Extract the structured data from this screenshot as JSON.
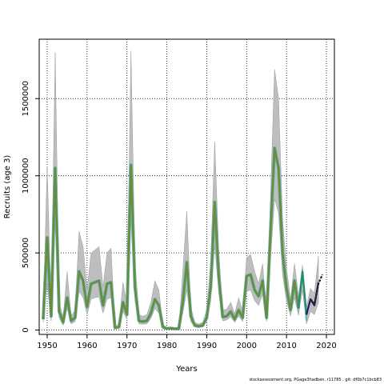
{
  "chart_data": {
    "type": "line",
    "title": "",
    "xlabel": "Years",
    "ylabel": "Recruits (age 3)",
    "xlim": [
      1948,
      2022
    ],
    "ylim": [
      -28000,
      1885000
    ],
    "x_ticks": [
      1950,
      1960,
      1970,
      1980,
      1990,
      2000,
      2010,
      2020
    ],
    "y_ticks": [
      0,
      500000,
      1000000,
      1500000
    ],
    "grid": true,
    "grid_style": "dotted",
    "colors": {
      "band": "#bebebe",
      "band_edge": "#9a9a9a",
      "line_main": "#6e8b3d",
      "line_cyan": "#5fb8b8",
      "line_teal": "#1f8f6a",
      "line_navy": "#1f1f6e",
      "line_dark": "#222222"
    },
    "main_series": {
      "x": [
        1949,
        1950,
        1951,
        1952,
        1953,
        1954,
        1955,
        1956,
        1957,
        1958,
        1959,
        1960,
        1961,
        1962,
        1963,
        1964,
        1965,
        1966,
        1967,
        1968,
        1969,
        1970,
        1971,
        1972,
        1973,
        1974,
        1975,
        1976,
        1977,
        1978,
        1979,
        1980,
        1981,
        1982,
        1983,
        1984,
        1985,
        1986,
        1987,
        1988,
        1989,
        1990,
        1991,
        1992,
        1993,
        1994,
        1995,
        1996,
        1997,
        1998,
        1999,
        2000,
        2001,
        2002,
        2003,
        2004,
        2005,
        2006,
        2007,
        2008,
        2009,
        2010,
        2011,
        2012,
        2013
      ],
      "y": [
        70000,
        600000,
        90000,
        1050000,
        120000,
        50000,
        210000,
        60000,
        80000,
        380000,
        320000,
        150000,
        300000,
        310000,
        320000,
        160000,
        300000,
        310000,
        15000,
        20000,
        180000,
        100000,
        1070000,
        280000,
        60000,
        55000,
        60000,
        110000,
        200000,
        160000,
        20000,
        10000,
        12000,
        8000,
        10000,
        180000,
        440000,
        90000,
        30000,
        25000,
        30000,
        80000,
        280000,
        830000,
        350000,
        85000,
        90000,
        120000,
        70000,
        130000,
        80000,
        350000,
        360000,
        260000,
        220000,
        320000,
        80000,
        650000,
        1180000,
        1050000,
        500000,
        270000,
        130000,
        320000,
        140000
      ],
      "lower": [
        50000,
        300000,
        60000,
        700000,
        80000,
        30000,
        140000,
        40000,
        55000,
        250000,
        210000,
        100000,
        200000,
        210000,
        215000,
        110000,
        200000,
        210000,
        10000,
        12000,
        120000,
        70000,
        700000,
        190000,
        40000,
        38000,
        40000,
        75000,
        140000,
        110000,
        12000,
        6000,
        7000,
        5000,
        6000,
        110000,
        260000,
        55000,
        20000,
        15000,
        20000,
        55000,
        190000,
        550000,
        240000,
        60000,
        65000,
        85000,
        50000,
        90000,
        55000,
        250000,
        260000,
        190000,
        160000,
        230000,
        55000,
        460000,
        850000,
        760000,
        360000,
        190000,
        90000,
        210000,
        95000
      ],
      "upper": [
        100000,
        1060000,
        140000,
        1800000,
        180000,
        80000,
        380000,
        90000,
        130000,
        640000,
        540000,
        260000,
        500000,
        520000,
        540000,
        280000,
        500000,
        530000,
        25000,
        35000,
        310000,
        170000,
        1810000,
        450000,
        100000,
        90000,
        100000,
        180000,
        320000,
        260000,
        35000,
        18000,
        20000,
        14000,
        16000,
        380000,
        770000,
        150000,
        50000,
        40000,
        50000,
        130000,
        450000,
        1220000,
        520000,
        130000,
        135000,
        180000,
        105000,
        210000,
        120000,
        470000,
        490000,
        380000,
        300000,
        430000,
        120000,
        880000,
        1690000,
        1500000,
        720000,
        400000,
        200000,
        430000,
        220000
      ]
    },
    "recent_series": [
      {
        "color_key": "line_cyan",
        "x": [
          2013,
          2014,
          2015
        ],
        "y": [
          140000,
          380000,
          60000
        ]
      },
      {
        "color_key": "line_teal",
        "x": [
          2013,
          2014,
          2015
        ],
        "y": [
          140000,
          380000,
          100000
        ]
      },
      {
        "color_key": "line_navy",
        "x": [
          2015,
          2016,
          2017,
          2018
        ],
        "y": [
          100000,
          200000,
          160000,
          310000
        ]
      },
      {
        "color_key": "line_dark",
        "x": [
          2016,
          2017,
          2018,
          2019
        ],
        "y": [
          200000,
          170000,
          300000,
          360000
        ]
      }
    ],
    "recent_band": {
      "x": [
        2013,
        2014,
        2015,
        2016,
        2017,
        2018
      ],
      "lower": [
        100000,
        260000,
        40000,
        120000,
        100000,
        180000
      ],
      "upper": [
        220000,
        420000,
        150000,
        270000,
        240000,
        480000
      ]
    }
  },
  "footer": "stockassessment.org, PGage3hadben, r11785 , git: df0b7c1bcb83"
}
